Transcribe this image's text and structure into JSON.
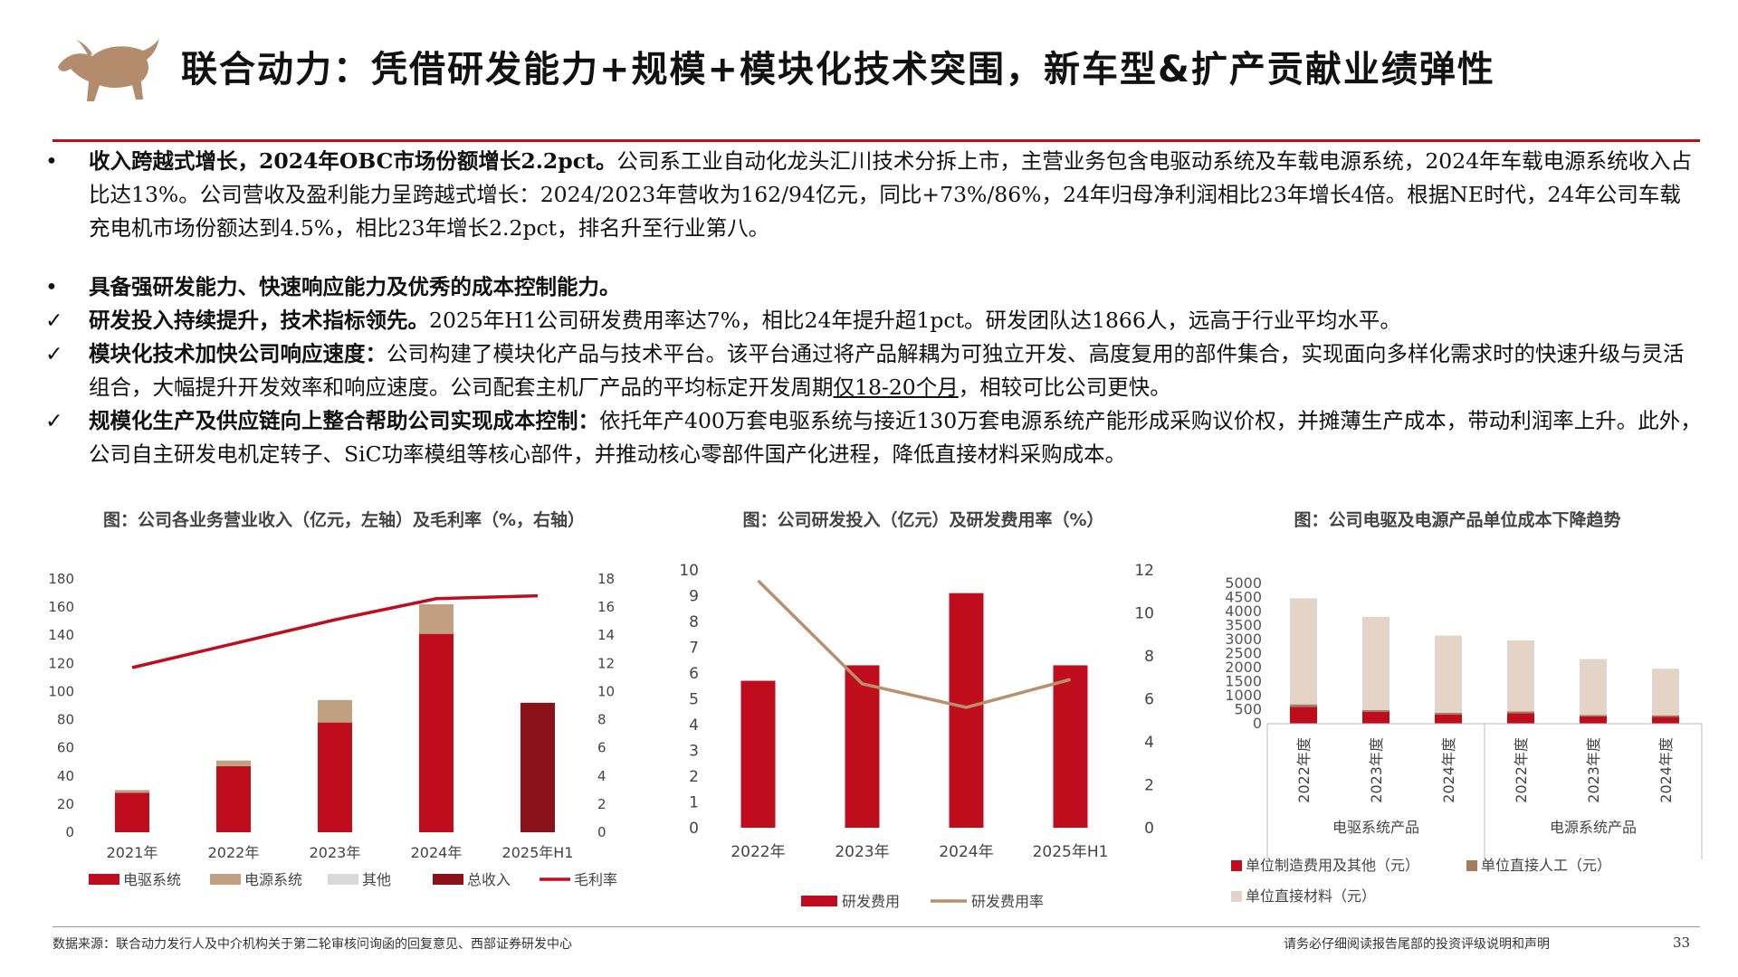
{
  "page_title": "联合动力：凭借研发能力+规模+模块化技术突围，新车型&扩产贡献业绩弹性",
  "colors": {
    "accent": "#c00d1e",
    "dark_red": "#8b1118",
    "tan": "#c1a082",
    "beige": "#e4d4c8",
    "gray": "#d9d9d9",
    "line_tan": "#b8906d"
  },
  "bullets": [
    {
      "marker": "•",
      "bold": "收入跨越式增长，2024年OBC市场份额增长2.2pct。",
      "text": "公司系工业自动化龙头汇川技术分拆上市，主营业务包含电驱动系统及车载电源系统，2024年车载电源系统收入占比达13%。公司营收及盈利能力呈跨越式增长：2024/2023年营收为162/94亿元，同比+73%/86%，24年归母净利润相比23年增长4倍。根据NE时代，24年公司车载充电机市场份额达到4.5%，相比23年增长2.2pct，排名升至行业第八。"
    },
    {
      "marker": "•",
      "bold": "具备强研发能力、快速响应能力及优秀的成本控制能力。",
      "text": ""
    },
    {
      "marker": "✓",
      "bold": "研发投入持续提升，技术指标领先。",
      "text": "2025年H1公司研发费用率达7%，相比24年提升超1pct。研发团队达1866人，远高于行业平均水平。"
    },
    {
      "marker": "✓",
      "bold": "模块化技术加快公司响应速度：",
      "text": "公司构建了模块化产品与技术平台。该平台通过将产品解耦为可独立开发、高度复用的部件集合，实现面向多样化需求时的快速升级与灵活组合，大幅提升开发效率和响应速度。公司配套主机厂产品的平均标定开发周期",
      "underline": "仅18-20个月",
      "tail": "，相较可比公司更快。"
    },
    {
      "marker": "✓",
      "bold": "规模化生产及供应链向上整合帮助公司实现成本控制：",
      "text": "依托年产400万套电驱系统与接近130万套电源系统产能形成采购议价权，并摊薄生产成本，带动利润率上升。此外，公司自主研发电机定转子、SiC功率模组等核心部件，并推动核心零部件国产化进程，降低直接材料采购成本。"
    }
  ],
  "chart_data": [
    {
      "type": "bar",
      "title": "图：公司各业务营业收入（亿元，左轴）及毛利率（%，右轴）",
      "categories": [
        "2021年",
        "2022年",
        "2023年",
        "2024年",
        "2025年H1"
      ],
      "series": [
        {
          "name": "电驱系统",
          "values": [
            28,
            47,
            78,
            141,
            0
          ],
          "color": "#c00d1e"
        },
        {
          "name": "电源系统",
          "values": [
            2,
            4,
            16,
            21,
            0
          ],
          "color": "#c1a082"
        },
        {
          "name": "其他",
          "values": [
            0,
            0,
            0,
            0,
            0
          ],
          "color": "#d9d9d9"
        },
        {
          "name": "总收入",
          "values": [
            0,
            0,
            0,
            0,
            92
          ],
          "color": "#8b1118"
        },
        {
          "name": "毛利率",
          "values": [
            11.7,
            13.4,
            15.1,
            16.6,
            16.8
          ],
          "color": "#c00d1e",
          "axis": "right"
        }
      ],
      "ylim": [
        0,
        180
      ],
      "yticks": [
        "0",
        "20",
        "40",
        "60",
        "80",
        "100",
        "120",
        "140",
        "160",
        "180"
      ],
      "y2lim": [
        0,
        18
      ],
      "y2ticks": [
        "0",
        "2",
        "4",
        "6",
        "8",
        "10",
        "12",
        "14",
        "16",
        "18"
      ],
      "legend": "bottom"
    },
    {
      "type": "bar",
      "title": "图：公司研发投入（亿元）及研发费用率（%）",
      "categories": [
        "2022年",
        "2023年",
        "2024年",
        "2025年H1"
      ],
      "series": [
        {
          "name": "研发费用",
          "values": [
            5.7,
            6.3,
            9.1,
            6.3
          ],
          "color": "#c00d1e"
        },
        {
          "name": "研发费用率",
          "values": [
            11.5,
            6.7,
            5.6,
            6.9
          ],
          "color": "#b8906d",
          "axis": "right"
        }
      ],
      "ylim": [
        0,
        10
      ],
      "yticks": [
        "0",
        "1",
        "2",
        "3",
        "4",
        "5",
        "6",
        "7",
        "8",
        "9",
        "10"
      ],
      "y2lim": [
        0,
        12
      ],
      "y2ticks": [
        "0",
        "2",
        "4",
        "6",
        "8",
        "10",
        "12"
      ],
      "legend": "bottom"
    },
    {
      "type": "bar",
      "title": "图：公司电驱及电源产品单位成本下降趋势",
      "categories": [
        "2022年度",
        "2023年度",
        "2024年度",
        "2022年度",
        "2023年度",
        "2024年度"
      ],
      "groups": [
        "电驱系统产品",
        "电源系统产品"
      ],
      "series": [
        {
          "name": "单位制造费用及其他（元）",
          "values": [
            600,
            420,
            330,
            370,
            260,
            250
          ],
          "color": "#c00d1e"
        },
        {
          "name": "单位直接人工（元）",
          "values": [
            90,
            70,
            60,
            70,
            55,
            50
          ],
          "color": "#a57c5d"
        },
        {
          "name": "单位直接材料（元）",
          "values": [
            3780,
            3320,
            2750,
            2530,
            1990,
            1660
          ],
          "color": "#e4d4c8"
        }
      ],
      "ylim": [
        0,
        5000
      ],
      "yticks": [
        "0",
        "500",
        "1000",
        "1500",
        "2000",
        "2500",
        "3000",
        "3500",
        "4000",
        "4500",
        "5000"
      ],
      "legend": "bottom"
    }
  ],
  "footer": {
    "source": "数据来源：联合动力发行人及中介机构关于第二轮审核问询函的回复意见、西部证券研发中心",
    "disclaimer": "请务必仔细阅读报告尾部的投资评级说明和声明",
    "page_number": "33"
  }
}
